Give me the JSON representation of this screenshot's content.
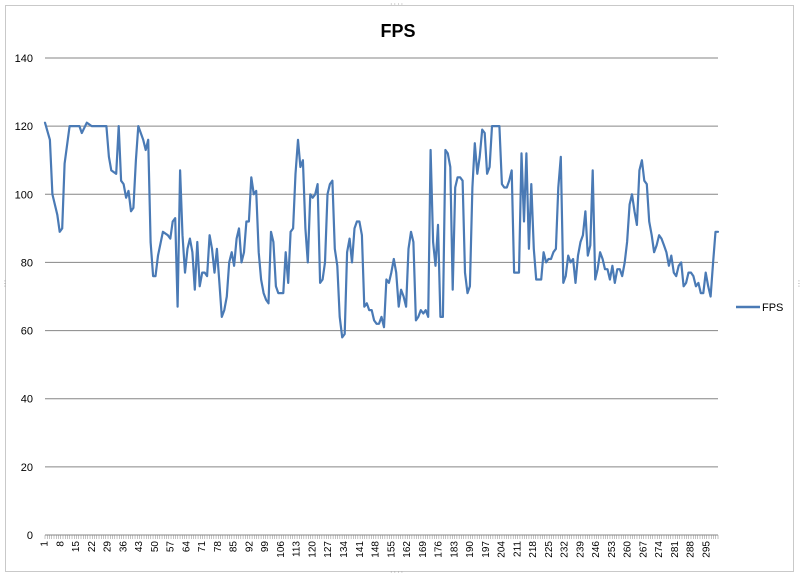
{
  "chart_data": {
    "type": "line",
    "title": "FPS",
    "xlabel": "",
    "ylabel": "",
    "ylim": [
      0,
      140
    ],
    "yticks": [
      0,
      20,
      40,
      60,
      80,
      100,
      120,
      140
    ],
    "xticks": [
      1,
      8,
      15,
      22,
      29,
      36,
      43,
      50,
      57,
      64,
      71,
      78,
      85,
      92,
      99,
      106,
      113,
      120,
      127,
      134,
      141,
      148,
      155,
      162,
      169,
      176,
      183,
      190,
      197,
      204,
      211,
      218,
      225,
      232,
      239,
      246,
      253,
      260,
      267,
      274,
      281,
      288,
      295
    ],
    "grid": true,
    "legend": "right",
    "line_color": "#4a7ab5",
    "series": [
      {
        "name": "FPS",
        "anchors": [
          [
            1,
            121
          ],
          [
            3,
            116
          ],
          [
            4,
            100
          ],
          [
            6,
            94
          ],
          [
            7,
            89
          ],
          [
            8,
            90
          ],
          [
            9,
            109
          ],
          [
            11,
            120
          ],
          [
            13,
            120
          ],
          [
            15,
            120
          ],
          [
            16,
            118
          ],
          [
            18,
            121
          ],
          [
            20,
            120
          ],
          [
            23,
            120
          ],
          [
            26,
            120
          ],
          [
            27,
            111
          ],
          [
            28,
            107
          ],
          [
            30,
            106
          ],
          [
            31,
            120
          ],
          [
            32,
            104
          ],
          [
            33,
            103
          ],
          [
            34,
            99
          ],
          [
            35,
            101
          ],
          [
            36,
            95
          ],
          [
            37,
            96
          ],
          [
            38,
            110
          ],
          [
            39,
            120
          ],
          [
            41,
            116
          ],
          [
            42,
            113
          ],
          [
            43,
            116
          ],
          [
            44,
            86
          ],
          [
            45,
            76
          ],
          [
            46,
            76
          ],
          [
            47,
            82
          ],
          [
            49,
            89
          ],
          [
            51,
            88
          ],
          [
            52,
            87
          ],
          [
            53,
            92
          ],
          [
            54,
            93
          ],
          [
            55,
            67
          ],
          [
            56,
            107
          ],
          [
            57,
            88
          ],
          [
            58,
            77
          ],
          [
            59,
            84
          ],
          [
            60,
            87
          ],
          [
            61,
            83
          ],
          [
            62,
            72
          ],
          [
            63,
            86
          ],
          [
            64,
            73
          ],
          [
            65,
            77
          ],
          [
            66,
            77
          ],
          [
            67,
            76
          ],
          [
            68,
            88
          ],
          [
            69,
            84
          ],
          [
            70,
            77
          ],
          [
            71,
            84
          ],
          [
            72,
            74
          ],
          [
            73,
            64
          ],
          [
            74,
            66
          ],
          [
            75,
            70
          ],
          [
            76,
            80
          ],
          [
            77,
            83
          ],
          [
            78,
            79
          ],
          [
            79,
            87
          ],
          [
            80,
            90
          ],
          [
            81,
            80
          ],
          [
            82,
            83
          ],
          [
            83,
            92
          ],
          [
            84,
            92
          ],
          [
            85,
            105
          ],
          [
            86,
            100
          ],
          [
            87,
            101
          ],
          [
            88,
            83
          ],
          [
            89,
            75
          ],
          [
            90,
            71
          ],
          [
            91,
            69
          ],
          [
            92,
            68
          ],
          [
            93,
            89
          ],
          [
            94,
            86
          ],
          [
            95,
            73
          ],
          [
            96,
            71
          ],
          [
            97,
            71
          ],
          [
            98,
            71
          ],
          [
            99,
            83
          ],
          [
            100,
            74
          ],
          [
            101,
            89
          ],
          [
            102,
            90
          ],
          [
            103,
            106
          ],
          [
            104,
            116
          ],
          [
            105,
            108
          ],
          [
            106,
            110
          ],
          [
            107,
            90
          ],
          [
            108,
            80
          ],
          [
            109,
            100
          ],
          [
            110,
            99
          ],
          [
            111,
            100
          ],
          [
            112,
            103
          ],
          [
            113,
            74
          ],
          [
            114,
            75
          ],
          [
            115,
            80
          ],
          [
            116,
            100
          ],
          [
            117,
            103
          ],
          [
            118,
            104
          ],
          [
            119,
            84
          ],
          [
            120,
            79
          ],
          [
            121,
            64
          ],
          [
            122,
            58
          ],
          [
            123,
            59
          ],
          [
            124,
            83
          ],
          [
            125,
            87
          ],
          [
            126,
            80
          ],
          [
            127,
            90
          ],
          [
            128,
            92
          ],
          [
            129,
            92
          ],
          [
            130,
            88
          ],
          [
            131,
            67
          ],
          [
            132,
            68
          ],
          [
            133,
            66
          ],
          [
            134,
            66
          ],
          [
            135,
            63
          ],
          [
            136,
            62
          ],
          [
            137,
            62
          ],
          [
            138,
            64
          ],
          [
            139,
            61
          ],
          [
            140,
            75
          ],
          [
            141,
            74
          ],
          [
            142,
            77
          ],
          [
            143,
            81
          ],
          [
            144,
            77
          ],
          [
            145,
            67
          ],
          [
            146,
            72
          ],
          [
            147,
            70
          ],
          [
            148,
            67
          ],
          [
            149,
            84
          ],
          [
            150,
            89
          ],
          [
            151,
            86
          ],
          [
            152,
            63
          ],
          [
            153,
            64
          ],
          [
            154,
            66
          ],
          [
            155,
            65
          ],
          [
            156,
            66
          ],
          [
            157,
            64
          ],
          [
            158,
            113
          ],
          [
            159,
            86
          ],
          [
            160,
            79
          ],
          [
            161,
            91
          ],
          [
            162,
            64
          ],
          [
            163,
            64
          ],
          [
            164,
            113
          ],
          [
            165,
            112
          ],
          [
            166,
            108
          ],
          [
            167,
            72
          ],
          [
            168,
            102
          ],
          [
            169,
            105
          ],
          [
            170,
            105
          ],
          [
            171,
            104
          ],
          [
            172,
            77
          ],
          [
            173,
            71
          ],
          [
            174,
            73
          ],
          [
            175,
            102
          ],
          [
            176,
            115
          ],
          [
            177,
            106
          ],
          [
            178,
            111
          ],
          [
            179,
            119
          ],
          [
            180,
            118
          ],
          [
            181,
            106
          ],
          [
            182,
            108
          ],
          [
            183,
            120
          ],
          [
            184,
            120
          ],
          [
            185,
            120
          ],
          [
            186,
            120
          ],
          [
            187,
            103
          ],
          [
            188,
            102
          ],
          [
            189,
            102
          ],
          [
            190,
            104
          ],
          [
            191,
            107
          ],
          [
            192,
            77
          ],
          [
            193,
            77
          ],
          [
            194,
            77
          ],
          [
            195,
            112
          ],
          [
            196,
            92
          ],
          [
            197,
            112
          ],
          [
            198,
            84
          ],
          [
            199,
            103
          ],
          [
            200,
            84
          ],
          [
            201,
            75
          ],
          [
            202,
            75
          ],
          [
            203,
            75
          ],
          [
            204,
            83
          ],
          [
            205,
            80
          ],
          [
            206,
            81
          ],
          [
            207,
            81
          ],
          [
            208,
            83
          ],
          [
            209,
            84
          ],
          [
            210,
            102
          ],
          [
            211,
            111
          ],
          [
            212,
            74
          ],
          [
            213,
            76
          ],
          [
            214,
            82
          ],
          [
            215,
            80
          ],
          [
            216,
            81
          ],
          [
            217,
            74
          ],
          [
            218,
            82
          ],
          [
            219,
            86
          ],
          [
            220,
            88
          ],
          [
            221,
            95
          ],
          [
            222,
            82
          ],
          [
            223,
            85
          ],
          [
            224,
            107
          ],
          [
            225,
            75
          ],
          [
            226,
            78
          ],
          [
            227,
            83
          ],
          [
            228,
            81
          ],
          [
            229,
            78
          ],
          [
            230,
            78
          ],
          [
            231,
            75
          ],
          [
            232,
            79
          ],
          [
            233,
            74
          ],
          [
            234,
            78
          ],
          [
            235,
            78
          ],
          [
            236,
            76
          ],
          [
            237,
            80
          ],
          [
            238,
            86
          ],
          [
            239,
            97
          ],
          [
            240,
            100
          ],
          [
            241,
            95
          ],
          [
            242,
            91
          ],
          [
            243,
            107
          ],
          [
            244,
            110
          ],
          [
            245,
            104
          ],
          [
            246,
            103
          ],
          [
            247,
            92
          ],
          [
            248,
            88
          ],
          [
            249,
            83
          ],
          [
            250,
            85
          ],
          [
            251,
            88
          ],
          [
            252,
            87
          ],
          [
            253,
            85
          ],
          [
            254,
            83
          ],
          [
            255,
            79
          ],
          [
            256,
            82
          ],
          [
            257,
            77
          ],
          [
            258,
            76
          ],
          [
            259,
            79
          ],
          [
            260,
            80
          ],
          [
            261,
            73
          ],
          [
            262,
            74
          ],
          [
            263,
            77
          ],
          [
            264,
            77
          ],
          [
            265,
            76
          ],
          [
            266,
            73
          ],
          [
            267,
            74
          ],
          [
            268,
            71
          ],
          [
            269,
            71
          ],
          [
            270,
            77
          ],
          [
            271,
            73
          ],
          [
            272,
            70
          ],
          [
            273,
            80
          ],
          [
            274,
            89
          ],
          [
            275,
            89
          ]
        ]
      }
    ]
  }
}
